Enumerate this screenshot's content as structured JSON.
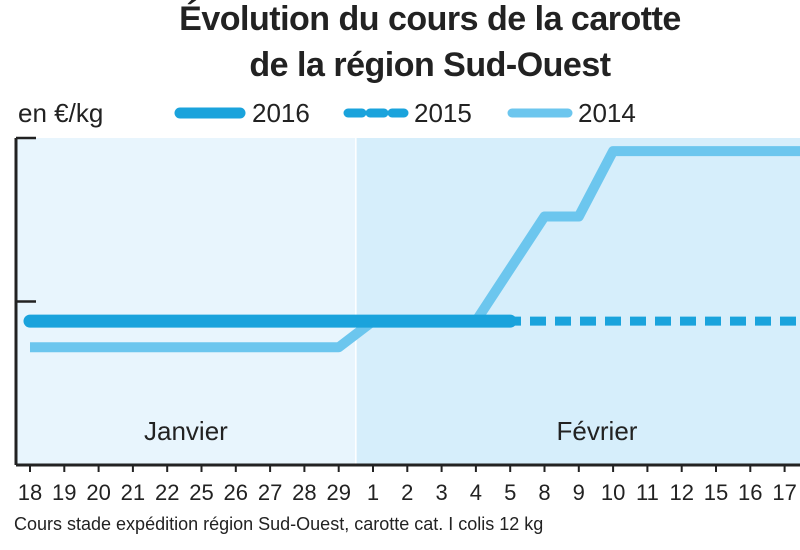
{
  "title_line1": "Évolution du cours de la carotte",
  "title_line2": "de la région Sud-Ouest",
  "unit_label": "en €/kg",
  "legend": [
    {
      "label": "2016",
      "style": "solid-thick",
      "color": "#1aa3dc"
    },
    {
      "label": "2015",
      "style": "dashed",
      "color": "#1aa3dc"
    },
    {
      "label": "2014",
      "style": "solid",
      "color": "#6cc6ee"
    }
  ],
  "note": "Cours stade expédition région Sud-Ouest, carotte cat. I colis 12 kg",
  "colors": {
    "background_january": "#e8f5fd",
    "background_february": "#d6eefb",
    "axis": "#222222",
    "series_2016": "#1aa3dc",
    "series_2015": "#1aa3dc",
    "series_2014": "#6cc6ee"
  },
  "chart_data": {
    "type": "line",
    "months": [
      "Janvier",
      "Février"
    ],
    "x": [
      "18",
      "19",
      "20",
      "21",
      "22",
      "25",
      "26",
      "27",
      "28",
      "29",
      "1",
      "2",
      "3",
      "4",
      "5",
      "8",
      "9",
      "10",
      "11",
      "12",
      "15",
      "16",
      "17"
    ],
    "series": [
      {
        "name": "2016",
        "values": [
          0.52,
          0.52,
          0.52,
          0.52,
          0.52,
          0.52,
          0.52,
          0.52,
          0.52,
          0.52,
          0.52,
          0.52,
          0.52,
          0.52,
          0.52,
          null,
          null,
          null,
          null,
          null,
          null,
          null,
          null
        ]
      },
      {
        "name": "2015",
        "values": [
          0.52,
          0.52,
          0.52,
          0.52,
          0.52,
          0.52,
          0.52,
          0.52,
          0.52,
          0.52,
          0.52,
          0.52,
          0.52,
          0.52,
          0.52,
          0.52,
          0.52,
          0.52,
          0.52,
          0.52,
          0.52,
          0.52,
          0.52
        ]
      },
      {
        "name": "2014",
        "values": [
          0.48,
          0.48,
          0.48,
          0.48,
          0.48,
          0.48,
          0.48,
          0.48,
          0.48,
          0.48,
          0.52,
          0.52,
          0.52,
          0.52,
          0.6,
          0.68,
          0.68,
          0.78,
          0.78,
          0.78,
          0.78,
          0.78,
          0.78
        ]
      }
    ],
    "ylim": [
      0.3,
      0.8
    ],
    "grid": false
  }
}
